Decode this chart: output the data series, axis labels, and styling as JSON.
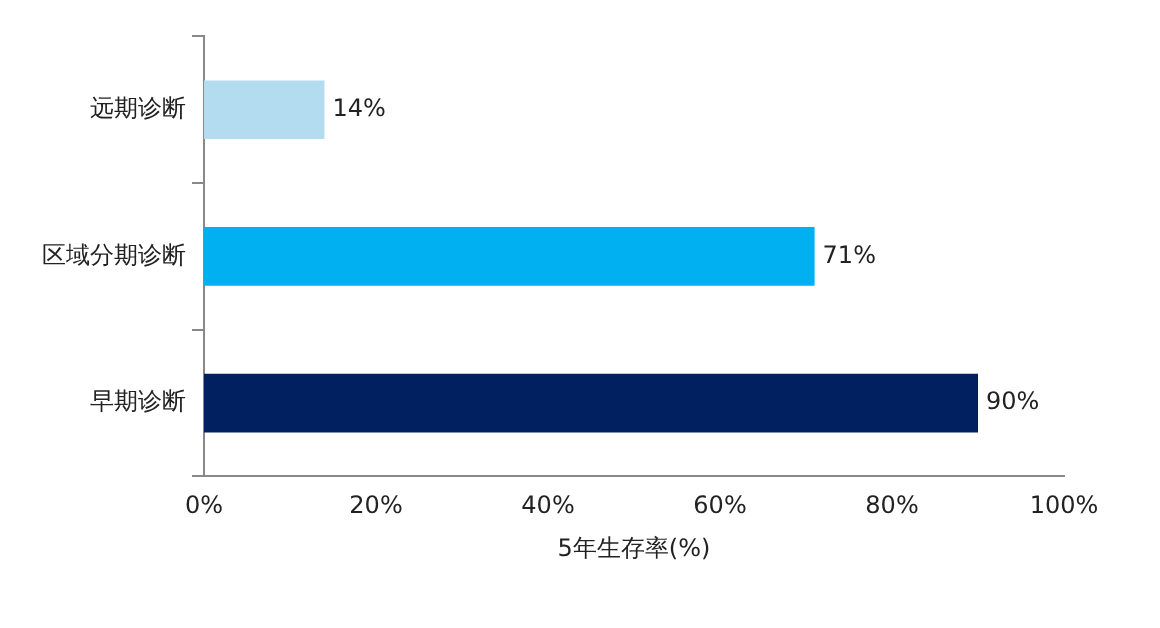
{
  "chart_data": {
    "type": "bar",
    "orientation": "horizontal",
    "categories": [
      "远期诊断",
      "区域分期诊断",
      "早期诊断"
    ],
    "values": [
      14,
      71,
      90
    ],
    "colors": [
      "#b4dcf0",
      "#00b0f0",
      "#002060"
    ],
    "value_labels": [
      "14%",
      "71%",
      "90%"
    ],
    "xlabel": "5年生存率(%)",
    "xlim": [
      0,
      100
    ],
    "xticks": [
      {
        "value": 0,
        "label": "0%"
      },
      {
        "value": 20,
        "label": "20%"
      },
      {
        "value": 40,
        "label": "40%"
      },
      {
        "value": 60,
        "label": "60%"
      },
      {
        "value": 80,
        "label": "80%"
      },
      {
        "value": 100,
        "label": "100%"
      }
    ],
    "grid": false,
    "legend": false
  }
}
